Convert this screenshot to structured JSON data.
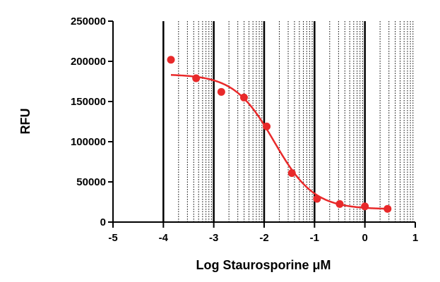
{
  "chart_data": {
    "type": "scatter",
    "title": "",
    "xlabel": "Log Staurosporine μM",
    "ylabel": "RFU",
    "xlim": [
      -5,
      1
    ],
    "ylim": [
      0,
      250000
    ],
    "x_ticks": [
      -5,
      -4,
      -3,
      -2,
      -1,
      0,
      1
    ],
    "y_ticks": [
      0,
      50000,
      100000,
      150000,
      200000,
      250000
    ],
    "x_tick_labels": [
      "-5",
      "-4",
      "-3",
      "-2",
      "-1",
      "0",
      "1"
    ],
    "y_tick_labels": [
      "0",
      "50000",
      "100000",
      "150000",
      "200000",
      "250000"
    ],
    "grid": "vertical log-spaced dotted minor lines, solid at decades",
    "color": "#e8292a",
    "series": [
      {
        "x": [
          -3.85,
          -3.35,
          -2.85,
          -2.4,
          -1.95,
          -1.45,
          -0.95,
          -0.5,
          0.0,
          0.45
        ],
        "y": [
          202000,
          179000,
          162000,
          155000,
          119000,
          61000,
          29000,
          22500,
          19500,
          16500
        ]
      }
    ],
    "fit": {
      "type": "sigmoidal dose-response",
      "top": 184000,
      "bottom": 16000,
      "log_ic50": -1.8,
      "hill_slope": -1.1,
      "x_range": [
        -3.85,
        0.45
      ]
    }
  }
}
